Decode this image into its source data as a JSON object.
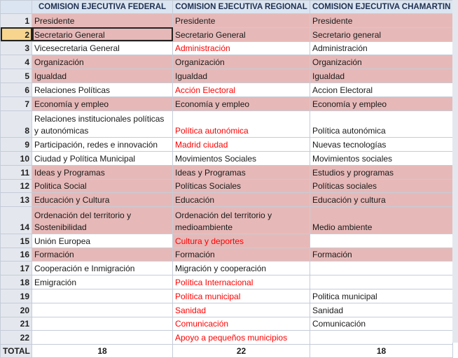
{
  "table": {
    "corner": null,
    "columns": [
      "COMISION EJECUTIVA FEDERAL",
      "COMISION EJECUTIVA REGIONAL",
      "COMISION EJECUTIVA CHAMARTIN"
    ],
    "selected": {
      "row": 1,
      "col": 0
    },
    "rows": [
      {
        "n": 1,
        "cells": [
          "Presidente",
          "Presidente",
          "Presidente"
        ],
        "pink": true
      },
      {
        "n": 2,
        "cells": [
          "Secretario General",
          "Secretario General",
          "Secretario general"
        ],
        "pink": true
      },
      {
        "n": 3,
        "cells": [
          "Vicesecretaria General",
          "Administración",
          "Administración"
        ],
        "red_cells": [
          1
        ]
      },
      {
        "n": 4,
        "cells": [
          "Organización",
          "Organización",
          "Organización"
        ],
        "pink": true
      },
      {
        "n": 5,
        "cells": [
          "Igualdad",
          "Igualdad",
          "Igualdad"
        ],
        "pink": true
      },
      {
        "n": 6,
        "cells": [
          "Relaciones Políticas",
          "Acción Electoral",
          "Accion Electoral"
        ],
        "red_cells": [
          1
        ]
      },
      {
        "n": 7,
        "cells": [
          "Economía y empleo",
          "Economía y empleo",
          "Economía y empleo"
        ],
        "pink": true
      },
      {
        "n": 8,
        "cells": [
          "Relaciones institucionales políticas y autonómicas",
          "Política autonómica",
          "Política autonómica"
        ],
        "red_cells": [
          1
        ],
        "tall": true
      },
      {
        "n": 9,
        "cells": [
          "Participación, redes e innovación",
          "Madrid ciudad",
          "Nuevas tecnologías"
        ],
        "red_cells": [
          1
        ]
      },
      {
        "n": 10,
        "cells": [
          "Ciudad y Política Municipal",
          "Movimientos Sociales",
          "Movimientos sociales"
        ]
      },
      {
        "n": 11,
        "cells": [
          "Ideas y Programas",
          "Ideas y Programas",
          "Estudios y programas"
        ],
        "pink": true
      },
      {
        "n": 12,
        "cells": [
          "Politica Social",
          "Políticas Sociales",
          "Políticas sociales"
        ],
        "pink": true
      },
      {
        "n": 13,
        "cells": [
          "Educación y Cultura",
          "Educación",
          "Educación y cultura"
        ],
        "pink": true
      },
      {
        "n": 14,
        "cells": [
          "Ordenación del territorio y Sostenibilidad",
          "Ordenación del territorio y medioambiente",
          "Medio ambiente"
        ],
        "pink": true,
        "tall": true
      },
      {
        "n": 15,
        "cells": [
          "Unión Europea",
          "Cultura y deportes",
          null
        ],
        "red_cells": [
          1
        ],
        "pink_cells": [
          1
        ]
      },
      {
        "n": 16,
        "cells": [
          "Formación",
          "Formación",
          "Formación"
        ],
        "pink": true
      },
      {
        "n": 17,
        "cells": [
          "Cooperación e Inmigración",
          "Migración y cooperación",
          null
        ]
      },
      {
        "n": 18,
        "cells": [
          "Emigración",
          "Política Internacional",
          null
        ],
        "red_cells": [
          1
        ]
      },
      {
        "n": 19,
        "cells": [
          null,
          "Política municipal",
          "Politica municipal"
        ],
        "red_cells": [
          1
        ]
      },
      {
        "n": 20,
        "cells": [
          null,
          "Sanidad",
          "Sanidad"
        ],
        "red_cells": [
          1
        ]
      },
      {
        "n": 21,
        "cells": [
          null,
          "Comunicación",
          "Comunicación"
        ],
        "red_cells": [
          1
        ]
      },
      {
        "n": 22,
        "cells": [
          null,
          "Apoyo a pequeños municipios",
          null
        ],
        "red_cells": [
          1
        ]
      }
    ],
    "total": {
      "label": "TOTAL",
      "values": [
        18,
        22,
        18
      ]
    }
  }
}
